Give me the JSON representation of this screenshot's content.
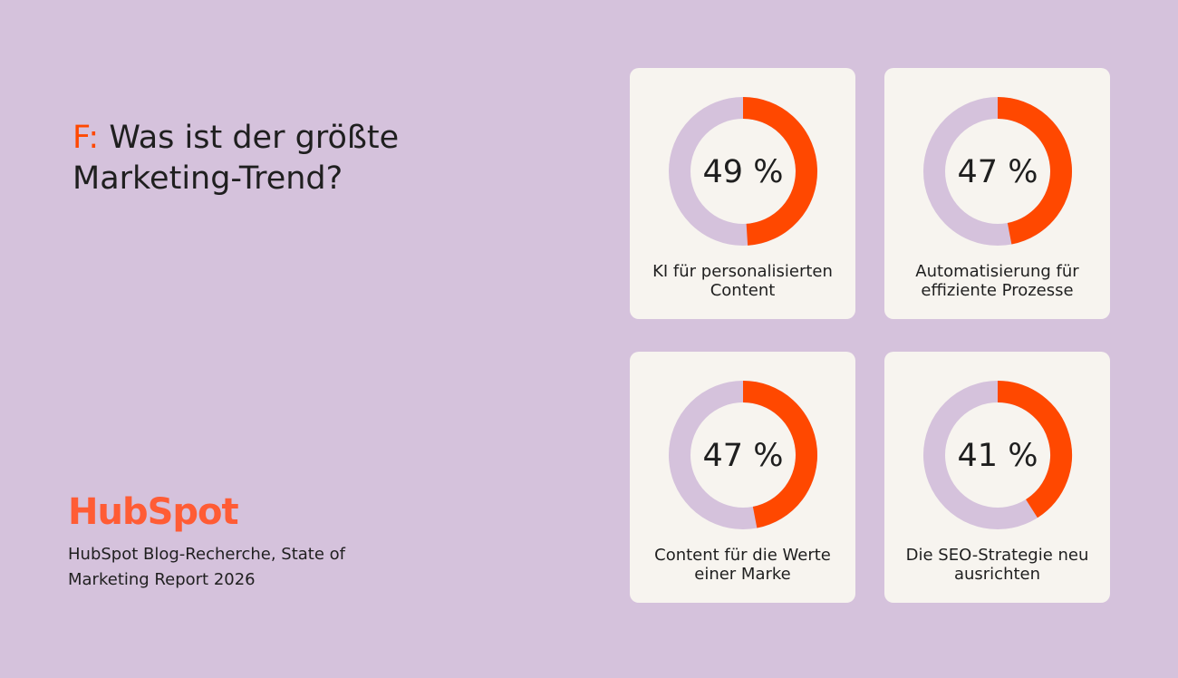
{
  "title_prefix": "F:",
  "title": "Was ist der größte Marketing-Trend?",
  "logo": "HubSpot",
  "source": "HubSpot Blog-Recherche, State of Marketing Report 2026",
  "chart_data": [
    {
      "type": "donut",
      "categories": [
        "KI für personalisierten Content"
      ],
      "values": [
        49
      ],
      "value_labels": [
        "49 %"
      ],
      "color": "#ff4800",
      "track_color": "#d5c2dc"
    },
    {
      "type": "donut",
      "categories": [
        "Automatisierung für effiziente Prozesse"
      ],
      "values": [
        47
      ],
      "value_labels": [
        "47 %"
      ],
      "color": "#ff4800",
      "track_color": "#d5c2dc"
    },
    {
      "type": "donut",
      "categories": [
        "Content für die Werte einer Marke"
      ],
      "values": [
        47
      ],
      "value_labels": [
        "47 %"
      ],
      "color": "#ff4800",
      "track_color": "#d5c2dc"
    },
    {
      "type": "donut",
      "categories": [
        "Die SEO-Strategie neu ausrichten"
      ],
      "values": [
        41
      ],
      "value_labels": [
        "41 %"
      ],
      "color": "#ff4800",
      "track_color": "#d5c2dc"
    }
  ]
}
